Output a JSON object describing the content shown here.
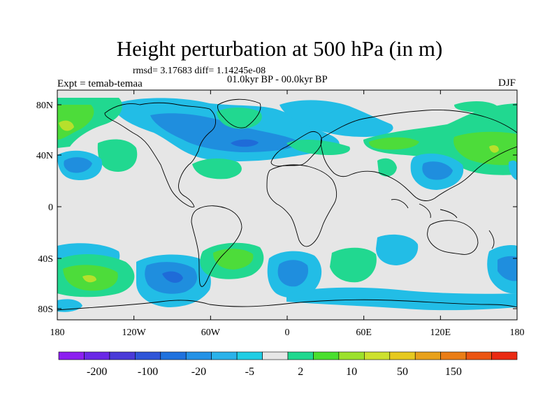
{
  "title": "Height perturbation at 500 hPa (in m)",
  "stats": "rmsd= 3.17683 diff= 1.14245e-08",
  "period": "01.0kyr BP - 00.0kyr BP",
  "experiment": "Expt = temab-temaa",
  "season": "DJF",
  "axes": {
    "lat_ticks": [
      "80N",
      "40N",
      "0",
      "40S",
      "80S"
    ],
    "lon_ticks": [
      "180",
      "120W",
      "60W",
      "0",
      "60E",
      "120E",
      "180"
    ]
  },
  "colorbar": {
    "colors": [
      "#8c1ff0",
      "#6a28e6",
      "#4a3ad8",
      "#2f55d8",
      "#1f72de",
      "#2492e6",
      "#2ab2ea",
      "#1fcde4",
      "#e6e6e6",
      "#20d88f",
      "#49df2e",
      "#9ce12c",
      "#cde12e",
      "#e6c91f",
      "#e8a11b",
      "#ea7d15",
      "#eb5512",
      "#ea2a12"
    ],
    "labels": [
      "-200",
      "-100",
      "-20",
      "-5",
      "2",
      "10",
      "50",
      "150"
    ]
  },
  "field_colors": {
    "background": "#e6e6e6",
    "light_blue": "#22bde6",
    "mid_blue": "#1f8ede",
    "deep_blue": "#1f6bd8",
    "light_green": "#21d890",
    "green": "#4ddc3a",
    "yellow_green": "#b7e02c"
  }
}
